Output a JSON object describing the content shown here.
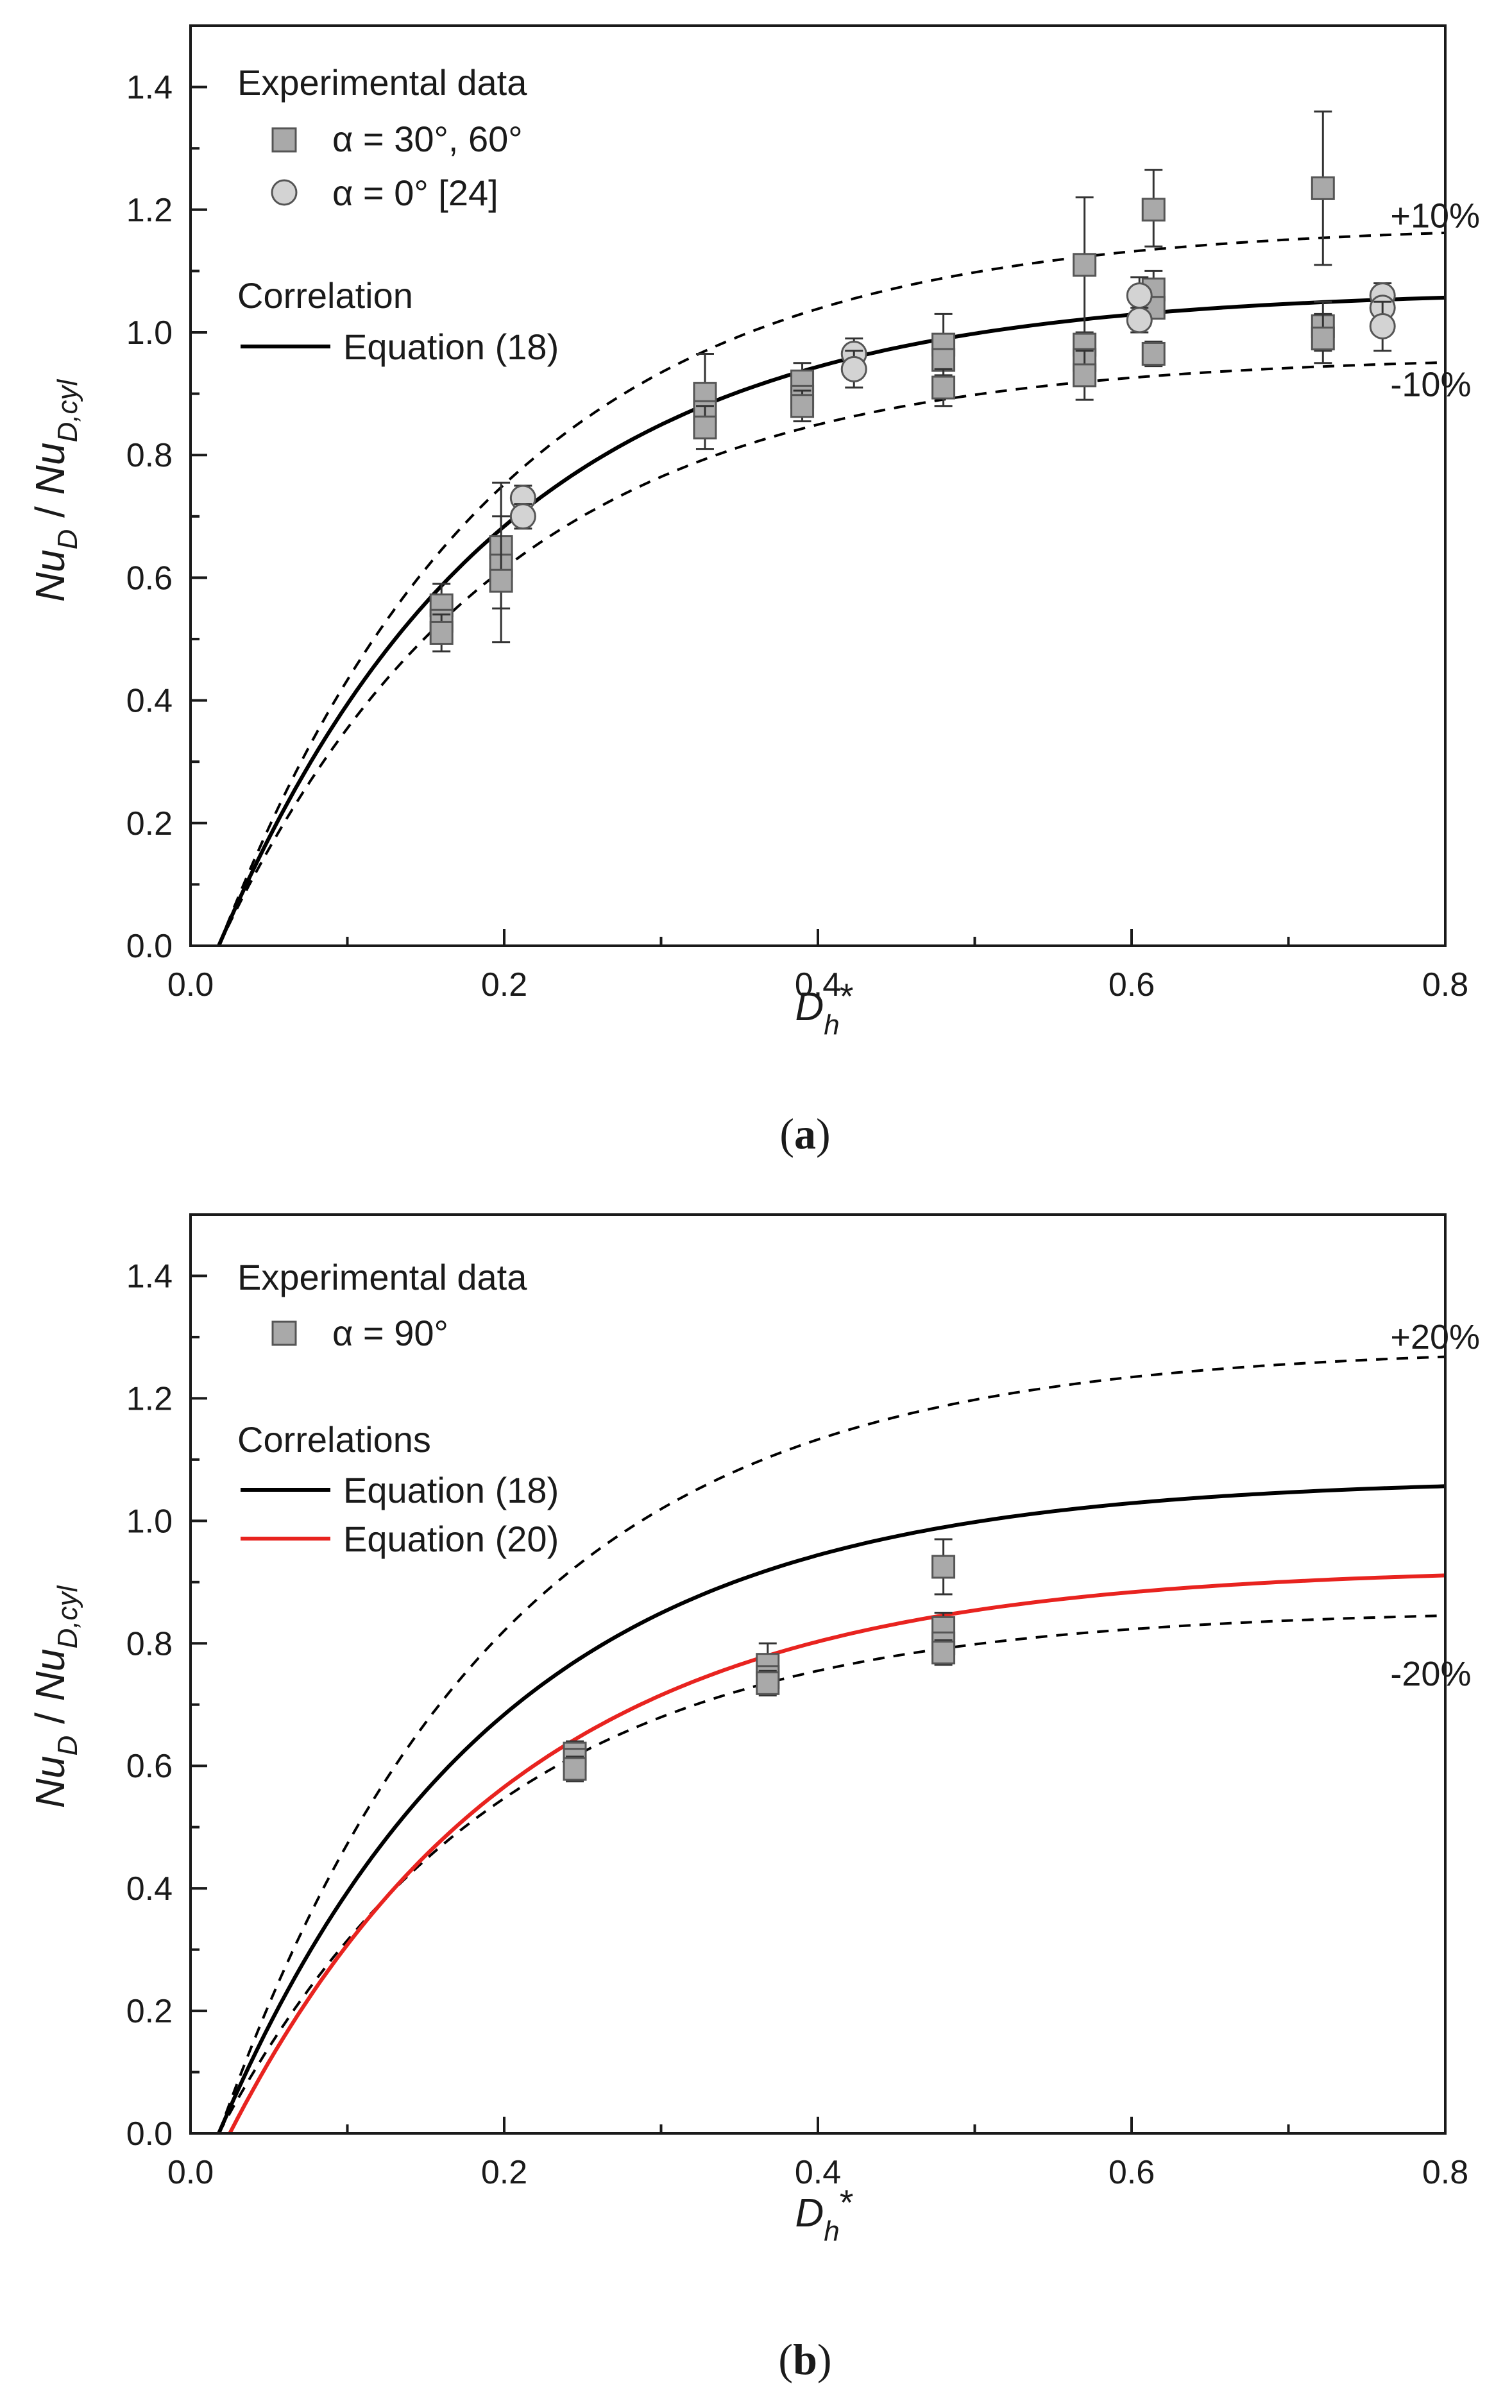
{
  "chart_data": [
    {
      "id": "a",
      "type": "scatter",
      "caption": "a",
      "xlabel": "D",
      "xlabel_sub": "h",
      "xlabel_sup": "*",
      "ylabel": {
        "a": "Nu",
        "a_sub": "D",
        "slash": " / ",
        "b": "Nu",
        "b_sub": "D,cyl"
      },
      "xlim": [
        0.0,
        0.8
      ],
      "ylim": [
        0.0,
        1.5
      ],
      "xticks": [
        "0.0",
        "0.2",
        "0.4",
        "0.6",
        "0.8"
      ],
      "yticks": [
        "0.0",
        "0.2",
        "0.4",
        "0.6",
        "0.8",
        "1.0",
        "1.2",
        "1.4"
      ],
      "legend": {
        "title": "Experimental data",
        "entries": [
          {
            "marker": "square",
            "label": "α = 30°, 60°"
          },
          {
            "marker": "circle",
            "label": "α = 0° [24]"
          }
        ],
        "lines_title": "Correlation",
        "lines": [
          {
            "label": "Equation (18)",
            "color": "#000000"
          }
        ]
      },
      "curves": [
        {
          "name": "Equation (18)",
          "color": "#000000",
          "style": "solid",
          "x0": 0.018,
          "xmax": 0.8,
          "a": 1.07,
          "k": 5.6,
          "scale": 1.0
        },
        {
          "name": "+10%",
          "color": "#000000",
          "style": "dashed",
          "x0": 0.018,
          "xmax": 0.8,
          "a": 1.07,
          "k": 5.6,
          "scale": 1.1
        },
        {
          "name": "-10%",
          "color": "#000000",
          "style": "dashed",
          "x0": 0.018,
          "xmax": 0.8,
          "a": 1.07,
          "k": 5.6,
          "scale": 0.9
        }
      ],
      "curve_labels": [
        {
          "text": "+10%",
          "x": 0.765,
          "y": 1.19
        },
        {
          "text": "-10%",
          "x": 0.765,
          "y": 0.915
        }
      ],
      "series": [
        {
          "name": "α = 30°, 60°",
          "marker": "square",
          "color": "#a9a9a9",
          "points": [
            {
              "x": 0.16,
              "y": 0.555,
              "lo": 0.52,
              "hi": 0.59
            },
            {
              "x": 0.16,
              "y": 0.53
            },
            {
              "x": 0.16,
              "y": 0.51,
              "lo": 0.48,
              "hi": 0.54
            },
            {
              "x": 0.198,
              "y": 0.65,
              "lo": 0.55,
              "hi": 0.755
            },
            {
              "x": 0.198,
              "y": 0.62
            },
            {
              "x": 0.198,
              "y": 0.595,
              "lo": 0.495,
              "hi": 0.7
            },
            {
              "x": 0.328,
              "y": 0.9,
              "lo": 0.85,
              "hi": 0.965
            },
            {
              "x": 0.328,
              "y": 0.87
            },
            {
              "x": 0.328,
              "y": 0.845,
              "lo": 0.81,
              "hi": 0.88
            },
            {
              "x": 0.39,
              "y": 0.92,
              "lo": 0.89,
              "hi": 0.95
            },
            {
              "x": 0.39,
              "y": 0.895
            },
            {
              "x": 0.39,
              "y": 0.88,
              "lo": 0.855,
              "hi": 0.905
            },
            {
              "x": 0.48,
              "y": 0.98,
              "lo": 0.93,
              "hi": 1.03
            },
            {
              "x": 0.48,
              "y": 0.955
            },
            {
              "x": 0.48,
              "y": 0.91,
              "lo": 0.88,
              "hi": 0.94
            },
            {
              "x": 0.57,
              "y": 1.11,
              "lo": 1.0,
              "hi": 1.22
            },
            {
              "x": 0.57,
              "y": 0.98
            },
            {
              "x": 0.57,
              "y": 0.955
            },
            {
              "x": 0.57,
              "y": 0.93,
              "lo": 0.89,
              "hi": 0.97
            },
            {
              "x": 0.614,
              "y": 1.2,
              "lo": 1.14,
              "hi": 1.265
            },
            {
              "x": 0.614,
              "y": 1.07,
              "lo": 1.04,
              "hi": 1.1
            },
            {
              "x": 0.614,
              "y": 1.04
            },
            {
              "x": 0.614,
              "y": 0.965,
              "lo": 0.945,
              "hi": 0.985
            },
            {
              "x": 0.722,
              "y": 1.235,
              "lo": 1.11,
              "hi": 1.36
            },
            {
              "x": 0.722,
              "y": 1.01,
              "lo": 0.97,
              "hi": 1.05
            },
            {
              "x": 0.722,
              "y": 0.99,
              "lo": 0.95,
              "hi": 1.03
            }
          ]
        },
        {
          "name": "α = 0° [24]",
          "marker": "circle",
          "color": "#d3d3d3",
          "points": [
            {
              "x": 0.212,
              "y": 0.73,
              "lo": 0.71,
              "hi": 0.75
            },
            {
              "x": 0.212,
              "y": 0.7,
              "lo": 0.68,
              "hi": 0.72
            },
            {
              "x": 0.423,
              "y": 0.965,
              "lo": 0.94,
              "hi": 0.99
            },
            {
              "x": 0.423,
              "y": 0.94,
              "lo": 0.91,
              "hi": 0.97
            },
            {
              "x": 0.605,
              "y": 1.06,
              "lo": 1.03,
              "hi": 1.09
            },
            {
              "x": 0.605,
              "y": 1.02,
              "lo": 1.0,
              "hi": 1.04
            },
            {
              "x": 0.76,
              "y": 1.06,
              "lo": 1.04,
              "hi": 1.08
            },
            {
              "x": 0.76,
              "y": 1.04
            },
            {
              "x": 0.76,
              "y": 1.01,
              "lo": 0.97,
              "hi": 1.05
            }
          ]
        }
      ]
    },
    {
      "id": "b",
      "type": "scatter",
      "caption": "b",
      "xlabel": "D",
      "xlabel_sub": "h",
      "xlabel_sup": "*",
      "ylabel": {
        "a": "Nu",
        "a_sub": "D",
        "slash": " / ",
        "b": "Nu",
        "b_sub": "D,cyl"
      },
      "xlim": [
        0.0,
        0.8
      ],
      "ylim": [
        0.0,
        1.5
      ],
      "xticks": [
        "0.0",
        "0.2",
        "0.4",
        "0.6",
        "0.8"
      ],
      "yticks": [
        "0.0",
        "0.2",
        "0.4",
        "0.6",
        "0.8",
        "1.0",
        "1.2",
        "1.4"
      ],
      "legend": {
        "title": "Experimental data",
        "entries": [
          {
            "marker": "square",
            "label": "α = 90°"
          }
        ],
        "lines_title": "Correlations",
        "lines": [
          {
            "label": "Equation (18)",
            "color": "#000000"
          },
          {
            "label": "Equation (20)",
            "color": "#e8231f"
          }
        ]
      },
      "curves": [
        {
          "name": "Equation (18)",
          "color": "#000000",
          "style": "solid",
          "x0": 0.018,
          "xmax": 0.8,
          "a": 1.07,
          "k": 5.6,
          "scale": 1.0
        },
        {
          "name": "+20%",
          "color": "#000000",
          "style": "dashed",
          "x0": 0.018,
          "xmax": 0.8,
          "a": 1.07,
          "k": 5.6,
          "scale": 1.2
        },
        {
          "name": "-20%",
          "color": "#000000",
          "style": "dashed",
          "x0": 0.018,
          "xmax": 0.8,
          "a": 1.07,
          "k": 5.6,
          "scale": 0.8
        },
        {
          "name": "Equation (20)",
          "color": "#e8231f",
          "style": "solid",
          "x0": 0.025,
          "xmax": 0.8,
          "a": 0.925,
          "k": 5.4,
          "scale": 1.0
        }
      ],
      "curve_labels": [
        {
          "text": "+20%",
          "x": 0.765,
          "y": 1.3
        },
        {
          "text": "-20%",
          "x": 0.765,
          "y": 0.75
        }
      ],
      "series": [
        {
          "name": "α = 90°",
          "marker": "square",
          "color": "#a9a9a9",
          "points": [
            {
              "x": 0.245,
              "y": 0.62,
              "lo": 0.6,
              "hi": 0.64
            },
            {
              "x": 0.245,
              "y": 0.61
            },
            {
              "x": 0.245,
              "y": 0.595,
              "lo": 0.575,
              "hi": 0.615
            },
            {
              "x": 0.368,
              "y": 0.765,
              "lo": 0.73,
              "hi": 0.8
            },
            {
              "x": 0.368,
              "y": 0.745
            },
            {
              "x": 0.368,
              "y": 0.735,
              "lo": 0.715,
              "hi": 0.755
            },
            {
              "x": 0.48,
              "y": 0.925,
              "lo": 0.88,
              "hi": 0.97
            },
            {
              "x": 0.48,
              "y": 0.825,
              "lo": 0.8,
              "hi": 0.85
            },
            {
              "x": 0.48,
              "y": 0.8
            },
            {
              "x": 0.48,
              "y": 0.785,
              "lo": 0.765,
              "hi": 0.805
            }
          ]
        }
      ]
    }
  ]
}
